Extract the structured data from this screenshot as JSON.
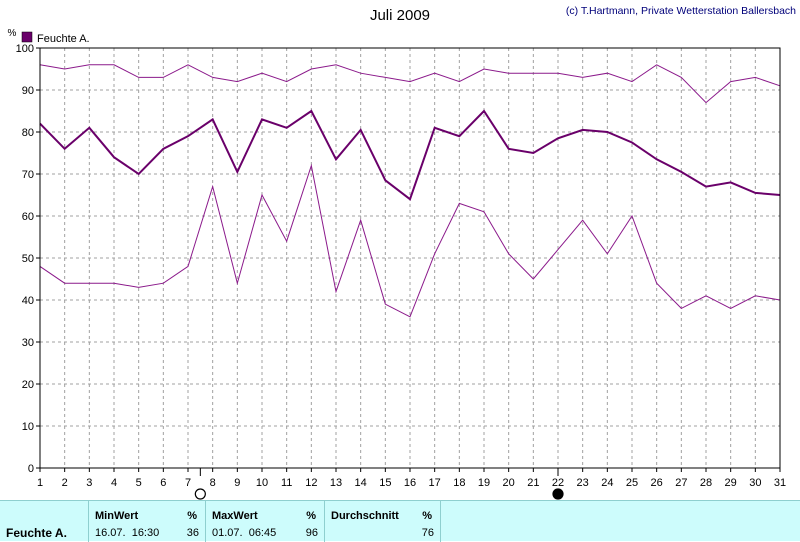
{
  "chart_data": {
    "type": "line",
    "title": "Juli 2009",
    "copyright": "(c) T.Hartmann, Private Wetterstation Ballersbach",
    "ylabel": "%",
    "xlabel": "",
    "ylim": [
      0,
      100
    ],
    "xlim": [
      1,
      31
    ],
    "y_ticks": [
      0,
      10,
      20,
      30,
      40,
      50,
      60,
      70,
      80,
      90,
      100
    ],
    "grid": true,
    "legend_placement": "top-left",
    "legend": [
      {
        "label": "Feuchte A.",
        "color": "#6a006a"
      }
    ],
    "x": [
      1,
      2,
      3,
      4,
      5,
      6,
      7,
      8,
      9,
      10,
      11,
      12,
      13,
      14,
      15,
      16,
      17,
      18,
      19,
      20,
      21,
      22,
      23,
      24,
      25,
      26,
      27,
      28,
      29,
      30,
      31
    ],
    "series": [
      {
        "name": "Feuchte A.",
        "role": "max",
        "color": "#8b1a8b",
        "values": [
          96,
          95,
          96,
          96,
          93,
          93,
          96,
          93,
          92,
          94,
          92,
          95,
          96,
          94,
          93,
          92,
          94,
          92,
          95,
          94,
          94,
          94,
          93,
          94,
          92,
          96,
          93,
          87,
          92,
          93,
          91
        ]
      },
      {
        "name": "Feuchte A.",
        "role": "mean",
        "color": "#6a006a",
        "values": [
          82,
          76,
          81,
          74,
          70,
          76,
          79,
          83,
          70.5,
          83,
          81,
          85,
          73.5,
          80.5,
          68.5,
          64,
          81,
          79,
          85,
          76,
          75,
          78.5,
          80.5,
          80,
          77.5,
          73.5,
          70.5,
          67,
          68,
          65.5,
          65
        ]
      },
      {
        "name": "Feuchte A.",
        "role": "min",
        "color": "#8b1a8b",
        "values": [
          48,
          44,
          44,
          44,
          43,
          44,
          48,
          67,
          44,
          65,
          54,
          72,
          42,
          59,
          39,
          36,
          51,
          63,
          61,
          51,
          45,
          52,
          59,
          51,
          60,
          44,
          38,
          41,
          38,
          41,
          40
        ]
      }
    ],
    "markers": [
      {
        "x": 7.5,
        "type": "open-circle"
      },
      {
        "x": 22,
        "type": "filled-circle"
      }
    ]
  },
  "stats": {
    "row_label": "Feuchte A.",
    "min": {
      "header": "MinWert",
      "unit": "%",
      "time": "16.07.  16:30",
      "value": "36"
    },
    "max": {
      "header": "MaxWert",
      "unit": "%",
      "time": "01.07.  06:45",
      "value": "96"
    },
    "avg": {
      "header": "Durchschnitt",
      "unit": "%",
      "value": "76"
    }
  }
}
